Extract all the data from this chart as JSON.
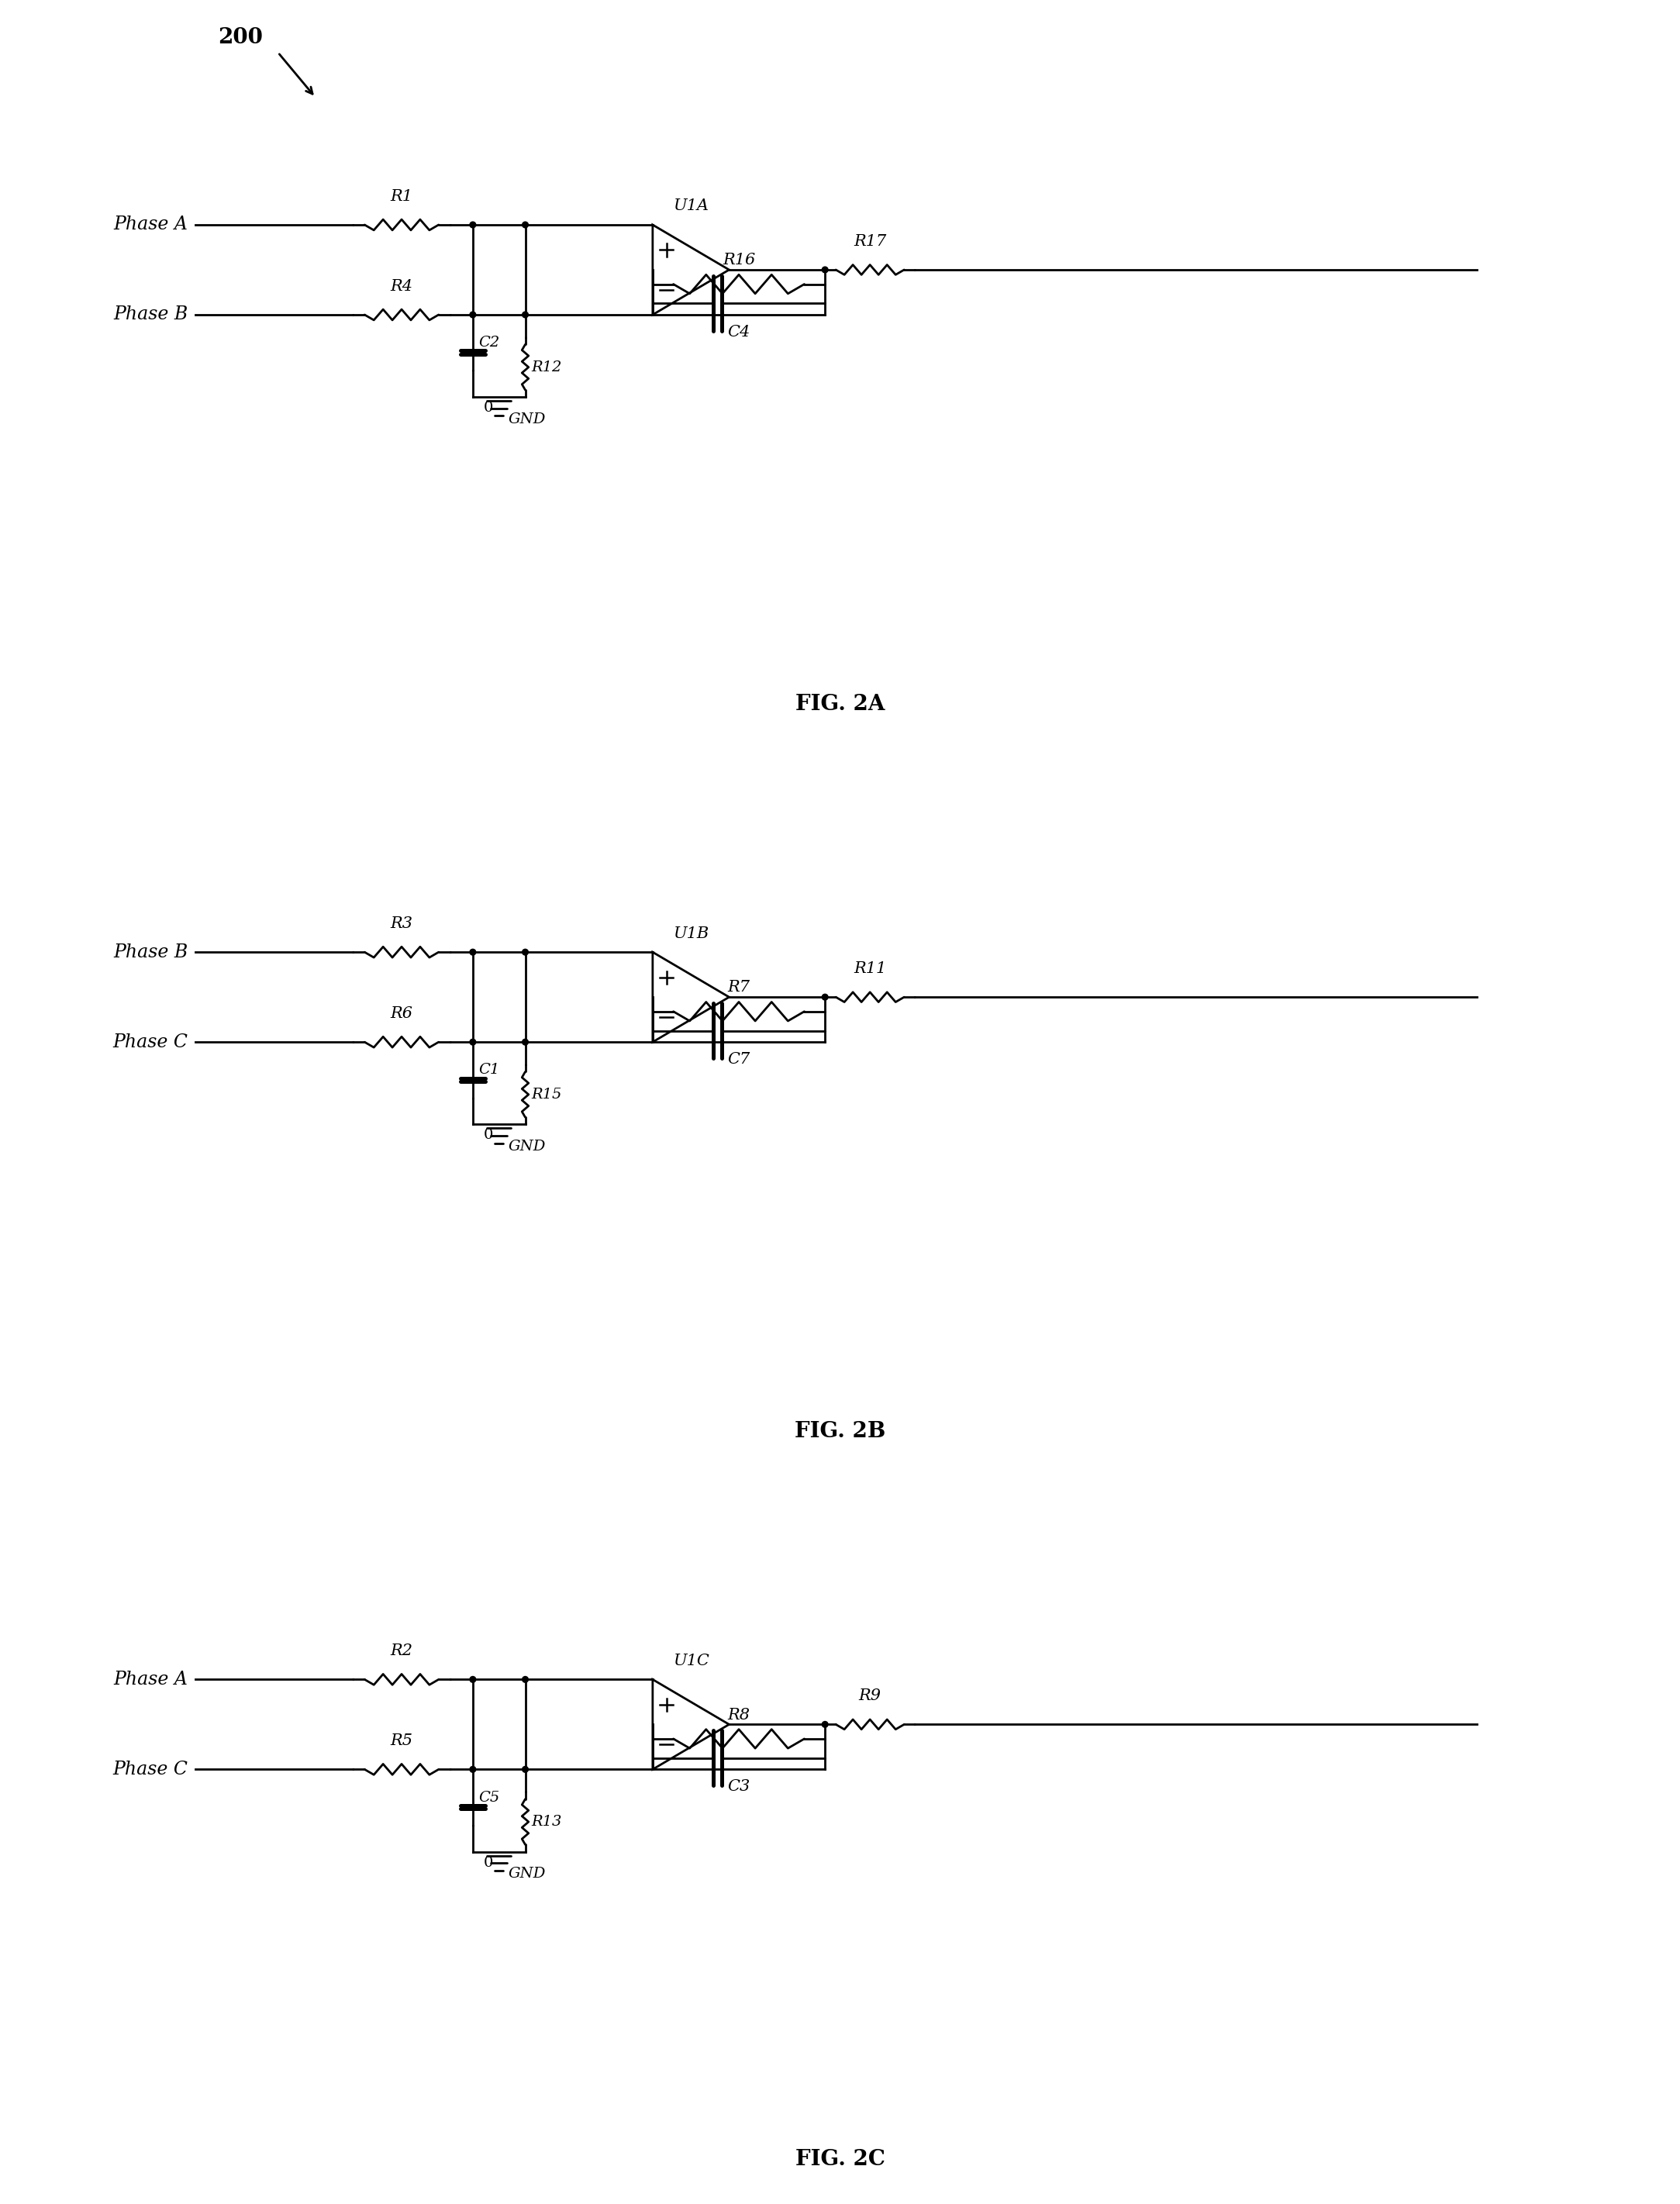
{
  "bg_color": "#ffffff",
  "line_color": "#000000",
  "lw": 2.0,
  "diagrams": [
    {
      "label": "FIG. 2A",
      "phase1_label": "Phase A",
      "phase1_R": "R1",
      "phase2_label": "Phase B",
      "phase2_R": "R4",
      "cap_label": "C2",
      "res_mid_label": "R12",
      "opamp_label": "U1A",
      "feedback_R_label": "R16",
      "feedback_C_label": "C4",
      "out_R_label": "R17",
      "gnd_label": "GND"
    },
    {
      "label": "FIG. 2B",
      "phase1_label": "Phase B",
      "phase1_R": "R3",
      "phase2_label": "Phase C",
      "phase2_R": "R6",
      "cap_label": "C1",
      "res_mid_label": "R15",
      "opamp_label": "U1B",
      "feedback_R_label": "R7",
      "feedback_C_label": "C7",
      "out_R_label": "R11",
      "gnd_label": "GND"
    },
    {
      "label": "FIG. 2C",
      "phase1_label": "Phase A",
      "phase1_R": "R2",
      "phase2_label": "Phase C",
      "phase2_R": "R5",
      "cap_label": "C5",
      "res_mid_label": "R13",
      "opamp_label": "U1C",
      "feedback_R_label": "R8",
      "feedback_C_label": "C3",
      "out_R_label": "R9",
      "gnd_label": "GND"
    }
  ],
  "fig200_label": "200"
}
